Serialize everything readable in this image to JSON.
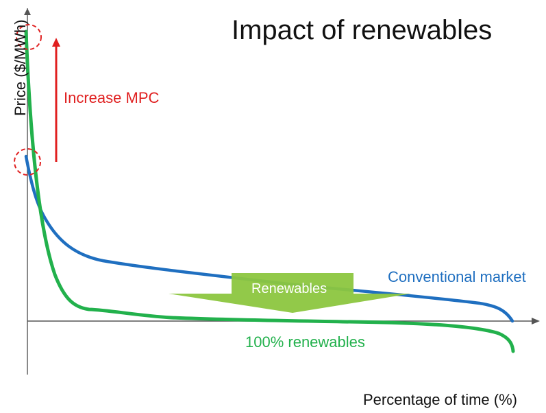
{
  "title": "Impact of renewables",
  "axes": {
    "y_label": "Price ($/MWh)",
    "x_label": "Percentage of time (%)"
  },
  "annotations": {
    "increase_mpc": "Increase MPC",
    "renewables_arrow": "Renewables",
    "conventional_market": "Conventional market",
    "hundred_renewables": "100% renewables"
  },
  "colors": {
    "conventional_curve": "#1f6fc0",
    "renewables_curve": "#22b14c",
    "mpc_red": "#e02020",
    "arrow_green": "#8cc63f",
    "axis": "#555555"
  },
  "icons": [
    "increase-arrow-icon",
    "downward-arrow-icon",
    "dashed-circle-icon"
  ]
}
